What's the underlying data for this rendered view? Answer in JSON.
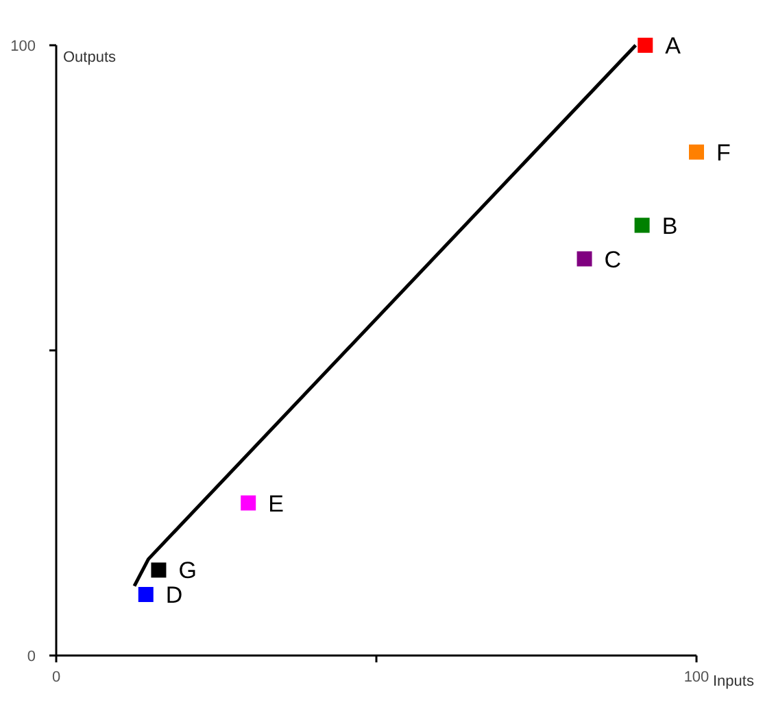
{
  "chart_data": {
    "type": "scatter",
    "xlabel": "Inputs",
    "ylabel": "Outputs",
    "xlim": [
      0,
      100
    ],
    "ylim": [
      0,
      100
    ],
    "xticks": [
      0,
      {
        "value": 50,
        "label": null
      },
      100
    ],
    "yticks": [
      0,
      {
        "value": 50,
        "label": null
      },
      100
    ],
    "grid": false,
    "legend": false,
    "marker": "square",
    "series": [
      {
        "name": "A",
        "color": "#ff0000",
        "x": [
          92
        ],
        "values": [
          100
        ]
      },
      {
        "name": "B",
        "color": "#008000",
        "x": [
          91.5
        ],
        "values": [
          70.5
        ]
      },
      {
        "name": "C",
        "color": "#800080",
        "x": [
          82.5
        ],
        "values": [
          65
        ]
      },
      {
        "name": "D",
        "color": "#0000ff",
        "x": [
          14
        ],
        "values": [
          10
        ]
      },
      {
        "name": "E",
        "color": "#ff00ff",
        "x": [
          30
        ],
        "values": [
          25
        ]
      },
      {
        "name": "F",
        "color": "#ff8000",
        "x": [
          100
        ],
        "values": [
          82.5
        ]
      },
      {
        "name": "G",
        "color": "#000000",
        "x": [
          16
        ],
        "values": [
          14
        ]
      },
      {
        "type": "line",
        "marker": "none",
        "color": "#000000",
        "x": [
          12.2,
          14.4,
          90.5
        ],
        "values": [
          11.4,
          15.8,
          100
        ]
      }
    ]
  }
}
